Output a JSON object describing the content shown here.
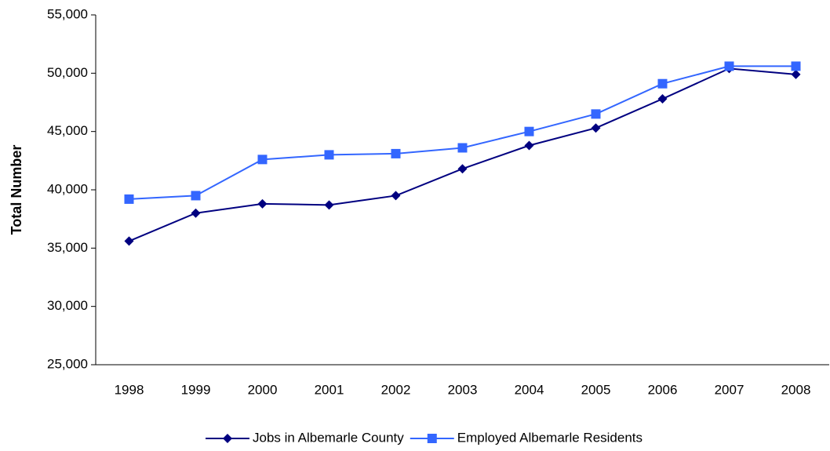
{
  "chart_data": {
    "type": "line",
    "ylabel": "Total Number",
    "categories": [
      "1998",
      "1999",
      "2000",
      "2001",
      "2002",
      "2003",
      "2004",
      "2005",
      "2006",
      "2007",
      "2008"
    ],
    "series": [
      {
        "name": "Jobs in Albemarle County",
        "color": "#000080",
        "marker": "diamond",
        "values": [
          35600,
          38000,
          38800,
          38700,
          39500,
          41800,
          43800,
          45300,
          47800,
          50400,
          49900
        ]
      },
      {
        "name": "Employed Albemarle Residents",
        "color": "#3366ff",
        "marker": "square",
        "values": [
          39200,
          39500,
          42600,
          43000,
          43100,
          43600,
          45000,
          46500,
          49100,
          50600,
          50600
        ]
      }
    ],
    "ylim": [
      25000,
      55000
    ],
    "yticks": [
      {
        "value": 25000,
        "label": "25,000"
      },
      {
        "value": 30000,
        "label": "30,000"
      },
      {
        "value": 35000,
        "label": "35,000"
      },
      {
        "value": 40000,
        "label": "40,000"
      },
      {
        "value": 45000,
        "label": "45,000"
      },
      {
        "value": 50000,
        "label": "50,000"
      },
      {
        "value": 55000,
        "label": "55,000"
      }
    ],
    "grid": false,
    "legend": "bottom"
  }
}
